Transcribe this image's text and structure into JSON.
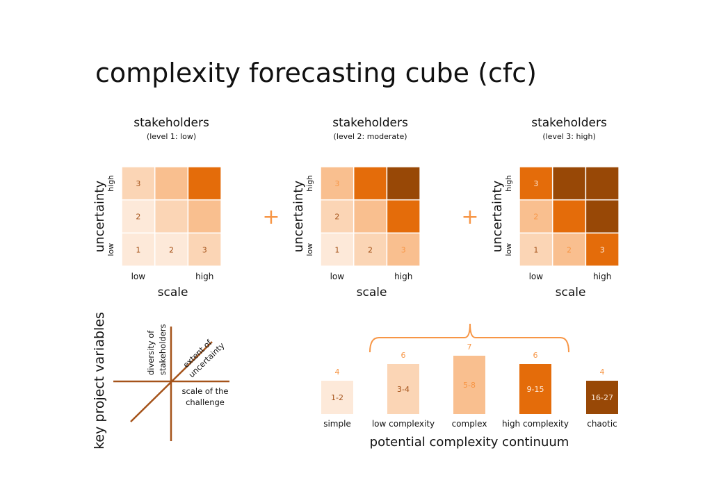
{
  "title": "complexity forecasting cube (cfc)",
  "colors": {
    "very_light": "#fde9d9",
    "light": "#fbd5b5",
    "medium": "#f9bf8f",
    "orange": "#e46c0a",
    "dark": "#984806",
    "line": "#a5531a",
    "accent": "#f79646"
  },
  "plus": "+",
  "grids": [
    {
      "title": "stakeholders",
      "subtitle": "(level 1: low)",
      "ylabel": "uncertainty",
      "y_low": "low",
      "y_high": "high",
      "xlabel": "scale",
      "x_low": "low",
      "x_high": "high",
      "cells": [
        [
          "light",
          "medium",
          "orange"
        ],
        [
          "very_light",
          "light",
          "medium"
        ],
        [
          "very_light",
          "very_light",
          "light"
        ]
      ],
      "row_numbers": [
        "3",
        "2",
        "1"
      ],
      "col_numbers": [
        "2",
        "3"
      ]
    },
    {
      "title": "stakeholders",
      "subtitle": "(level 2: moderate)",
      "ylabel": "uncertainty",
      "y_low": "low",
      "y_high": "high",
      "xlabel": "scale",
      "x_low": "low",
      "x_high": "high",
      "cells": [
        [
          "medium",
          "orange",
          "dark"
        ],
        [
          "light",
          "medium",
          "orange"
        ],
        [
          "very_light",
          "light",
          "medium"
        ]
      ],
      "row_numbers": [
        "3",
        "2",
        "1"
      ],
      "col_numbers": [
        "2",
        "3"
      ]
    },
    {
      "title": "stakeholders",
      "subtitle": "(level 3: high)",
      "ylabel": "uncertainty",
      "y_low": "low",
      "y_high": "high",
      "xlabel": "scale",
      "x_low": "low",
      "x_high": "high",
      "cells": [
        [
          "orange",
          "dark",
          "dark"
        ],
        [
          "medium",
          "orange",
          "dark"
        ],
        [
          "light",
          "medium",
          "orange"
        ]
      ],
      "row_numbers": [
        "3",
        "2",
        "1"
      ],
      "col_numbers": [
        "2",
        "3"
      ]
    }
  ],
  "key_variables": {
    "title": "key project variables",
    "vertical_axis": [
      "diversity of",
      "stakeholders"
    ],
    "diagonal_axis": [
      "extent of",
      "uncertainty"
    ],
    "horizontal_axis": [
      "scale of the",
      "challenge"
    ]
  },
  "continuum": {
    "title": "potential complexity continuum",
    "bars": [
      {
        "label": "simple",
        "range": "1-2",
        "count": "4",
        "color": "very_light"
      },
      {
        "label": "low complexity",
        "range": "3-4",
        "count": "6",
        "color": "light"
      },
      {
        "label": "complex",
        "range": "5-8",
        "count": "7",
        "color": "medium"
      },
      {
        "label": "high complexity",
        "range": "9-15",
        "count": "6",
        "color": "orange"
      },
      {
        "label": "chaotic",
        "range": "16-27",
        "count": "4",
        "color": "dark"
      }
    ]
  }
}
